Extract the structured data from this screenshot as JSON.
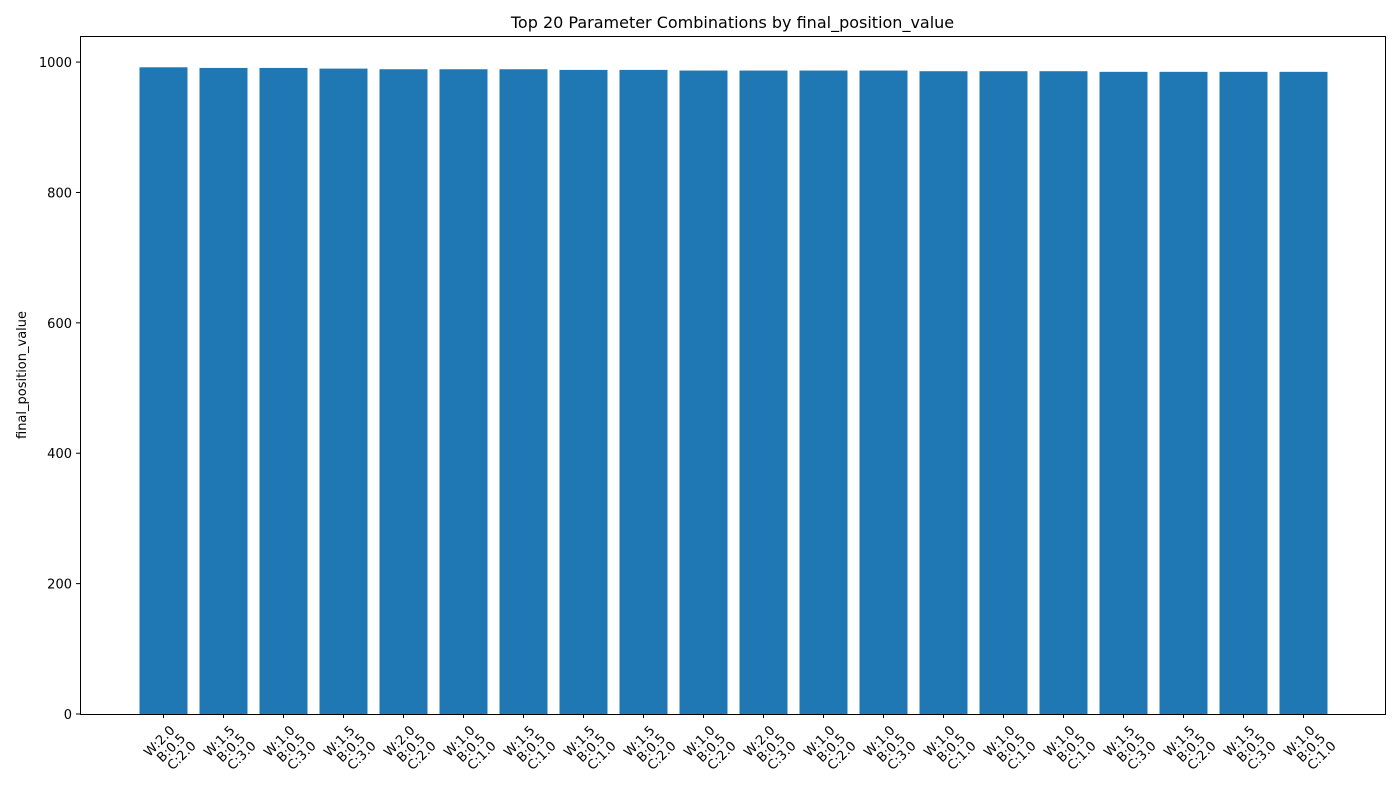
{
  "chart_data": {
    "type": "bar",
    "title": "Top 20 Parameter Combinations by final_position_value",
    "xlabel": "",
    "ylabel": "final_position_value",
    "ylim": [
      0,
      1040
    ],
    "yticks": [
      0,
      200,
      400,
      600,
      800,
      1000
    ],
    "grid": false,
    "bar_color": "#1f77b4",
    "categories": [
      [
        "W:2.0",
        "B:0.5",
        "C:2.0"
      ],
      [
        "W:1.5",
        "B:0.5",
        "C:3.0"
      ],
      [
        "W:1.0",
        "B:0.5",
        "C:3.0"
      ],
      [
        "W:1.5",
        "B:0.5",
        "C:3.0"
      ],
      [
        "W:2.0",
        "B:0.5",
        "C:2.0"
      ],
      [
        "W:1.0",
        "B:0.5",
        "C:1.0"
      ],
      [
        "W:1.5",
        "B:0.5",
        "C:1.0"
      ],
      [
        "W:1.5",
        "B:0.5",
        "C:1.0"
      ],
      [
        "W:1.5",
        "B:0.5",
        "C:2.0"
      ],
      [
        "W:1.0",
        "B:0.5",
        "C:2.0"
      ],
      [
        "W:2.0",
        "B:0.5",
        "C:3.0"
      ],
      [
        "W:1.0",
        "B:0.5",
        "C:2.0"
      ],
      [
        "W:1.0",
        "B:0.5",
        "C:3.0"
      ],
      [
        "W:1.0",
        "B:0.5",
        "C:1.0"
      ],
      [
        "W:1.0",
        "B:0.5",
        "C:1.0"
      ],
      [
        "W:1.0",
        "B:0.5",
        "C:1.0"
      ],
      [
        "W:1.5",
        "B:0.5",
        "C:3.0"
      ],
      [
        "W:1.5",
        "B:0.5",
        "C:2.0"
      ],
      [
        "W:1.5",
        "B:0.5",
        "C:3.0"
      ],
      [
        "W:1.0",
        "B:0.5",
        "C:1.0"
      ]
    ],
    "values": [
      992,
      991,
      991,
      990,
      989,
      989,
      989,
      988,
      988,
      987,
      987,
      987,
      987,
      986,
      986,
      986,
      985,
      985,
      985,
      985
    ]
  }
}
